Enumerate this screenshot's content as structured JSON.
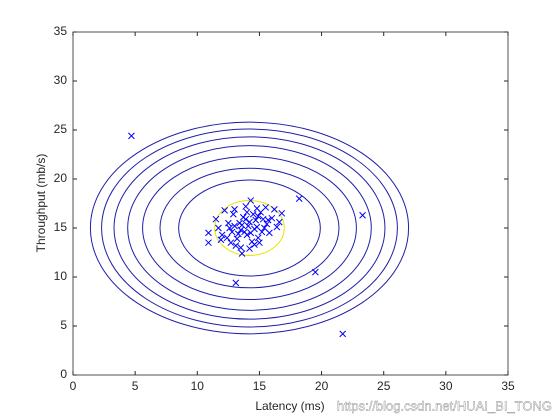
{
  "chart_data": {
    "type": "scatter",
    "xlabel": "Latency (ms)",
    "ylabel": "Throughput (mb/s)",
    "xlim": [
      0,
      35
    ],
    "ylim": [
      0,
      35
    ],
    "xticks": [
      0,
      5,
      10,
      15,
      20,
      25,
      30,
      35
    ],
    "yticks": [
      0,
      5,
      10,
      15,
      20,
      25,
      30,
      35
    ],
    "color": "#0000ff",
    "x": [
      13.0,
      13.5,
      14.2,
      14.8,
      15.3,
      14.0,
      13.7,
      12.8,
      15.6,
      14.5,
      13.2,
      14.9,
      12.5,
      16.0,
      15.1,
      13.9,
      14.3,
      12.2,
      12.0,
      11.7,
      16.4,
      15.8,
      13.4,
      14.6,
      14.1,
      13.8,
      14.4,
      13.1,
      15.0,
      12.7,
      13.6,
      14.2,
      16.8,
      16.2,
      15.5,
      14.8,
      12.9,
      11.5,
      12.4,
      13.3,
      14.7,
      15.2,
      13.9,
      14.0,
      12.6,
      15.7,
      16.6,
      13.5,
      14.6,
      11.9,
      13.0,
      14.9,
      15.4,
      13.6,
      14.3,
      4.7,
      18.2,
      23.3,
      19.5,
      21.7,
      13.1,
      10.9,
      10.9
    ],
    "values": [
      15.2,
      14.8,
      15.6,
      15.1,
      15.9,
      14.3,
      16.1,
      14.6,
      15.4,
      16.4,
      13.9,
      14.0,
      15.5,
      16.0,
      16.6,
      17.2,
      17.8,
      16.8,
      14.3,
      15.0,
      15.1,
      14.5,
      15.5,
      14.9,
      15.2,
      14.6,
      13.6,
      13.2,
      13.5,
      13.5,
      12.4,
      12.9,
      16.5,
      16.9,
      17.1,
      17.0,
      16.4,
      15.9,
      14.0,
      14.4,
      15.8,
      14.6,
      15.9,
      16.6,
      15.0,
      15.8,
      15.6,
      13.0,
      13.3,
      13.8,
      16.9,
      16.2,
      15.0,
      15.3,
      14.5,
      24.4,
      18.0,
      16.3,
      10.5,
      4.2,
      9.4,
      13.5,
      14.5
    ],
    "contours": [
      {
        "color": "#e5e500",
        "center": [
          14.2,
          15.0
        ],
        "radii": [
          2.8,
          2.8
        ]
      },
      {
        "color": "#1f1fa8",
        "center": [
          14.2,
          15.0
        ],
        "radii": [
          5.7,
          4.9
        ]
      },
      {
        "color": "#1f1fa8",
        "center": [
          14.2,
          15.0
        ],
        "radii": [
          7.2,
          6.1
        ]
      },
      {
        "color": "#1f1fa8",
        "center": [
          14.2,
          15.0
        ],
        "radii": [
          8.6,
          7.3
        ]
      },
      {
        "color": "#1f1fa8",
        "center": [
          14.2,
          15.0
        ],
        "radii": [
          9.8,
          8.4
        ]
      },
      {
        "color": "#1f1fa8",
        "center": [
          14.2,
          15.0
        ],
        "radii": [
          10.9,
          9.3
        ]
      },
      {
        "color": "#1f1fa8",
        "center": [
          14.2,
          15.0
        ],
        "radii": [
          11.9,
          10.1
        ]
      },
      {
        "color": "#1f1fa8",
        "center": [
          14.2,
          15.0
        ],
        "radii": [
          12.8,
          10.8
        ]
      }
    ],
    "watermark": "https://blog.csdn.net/HUAI_BI_TONG"
  }
}
